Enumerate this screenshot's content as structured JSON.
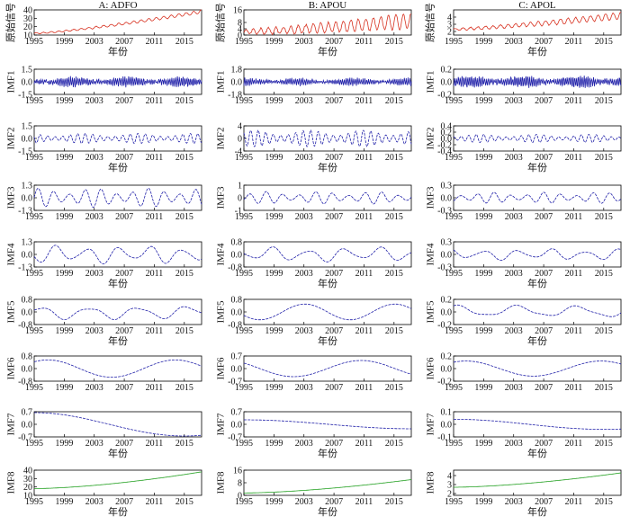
{
  "chart_data": {
    "type": "line",
    "xlabel": "年份",
    "x_range": [
      1995,
      2017.3
    ],
    "x_ticks": [
      "1995",
      "1999",
      "2003",
      "2007",
      "2011",
      "2015"
    ],
    "colors": {
      "raw": "#d7301f",
      "imf": "#1f1fa8",
      "trend": "#22a020"
    },
    "columns": [
      {
        "title": "A: ADFO",
        "panels": [
          {
            "ylabel": "原始信号",
            "kind": "raw",
            "yticks": [
              "40",
              "30",
              "20",
              "10"
            ],
            "ylim": [
              10,
              40
            ],
            "x_label_shown": true,
            "base": 12,
            "trend_end": 38,
            "noise": 1.5
          },
          {
            "ylabel": "IMF1",
            "kind": "imf",
            "yticks": [
              "1.5",
              "0.0",
              "-1.5"
            ],
            "ylim": [
              -1.5,
              1.5
            ],
            "x_label_shown": false,
            "period": 0.25,
            "amp": 0.5
          },
          {
            "ylabel": "IMF2",
            "kind": "imf",
            "yticks": [
              "1.5",
              "0.0",
              "-1.5"
            ],
            "ylim": [
              -1.5,
              1.5
            ],
            "x_label_shown": true,
            "period": 1.0,
            "amp": 0.55
          },
          {
            "ylabel": "IMF3",
            "kind": "imf",
            "yticks": [
              "1.3",
              "0.0",
              "-1.3"
            ],
            "ylim": [
              -1.3,
              1.3
            ],
            "x_label_shown": false,
            "period": 2.1,
            "amp": 0.9
          },
          {
            "ylabel": "IMF4",
            "kind": "imf",
            "yticks": [
              "1.3",
              "0.0",
              "-1.3"
            ],
            "ylim": [
              -1.3,
              1.3
            ],
            "x_label_shown": true,
            "period": 4.2,
            "amp": 0.9
          },
          {
            "ylabel": "IMF5",
            "kind": "imf",
            "yticks": [
              "0.8",
              "0.0",
              "-0.8"
            ],
            "ylim": [
              -0.8,
              0.8
            ],
            "x_label_shown": true,
            "period": 6.5,
            "amp": 0.45
          },
          {
            "ylabel": "IMF6",
            "kind": "imf",
            "yticks": [
              "0.8",
              "0.0",
              "-0.8"
            ],
            "ylim": [
              -0.8,
              0.8
            ],
            "x_label_shown": false,
            "period": 17,
            "amp": 0.55,
            "phase": 0.9
          },
          {
            "ylabel": "IMF7",
            "kind": "imf",
            "yticks": [
              "0.7",
              "0.0",
              "-0.7"
            ],
            "ylim": [
              -0.7,
              0.7
            ],
            "x_label_shown": true,
            "period": 40,
            "amp": 0.65,
            "phase": 1.57
          },
          {
            "ylabel": "IMF8",
            "kind": "trend",
            "yticks": [
              "40",
              "30",
              "20",
              "10"
            ],
            "ylim": [
              10,
              40
            ],
            "x_label_shown": true,
            "start": 18,
            "end": 38
          }
        ]
      },
      {
        "title": "B: APOU",
        "panels": [
          {
            "ylabel": "原始信号",
            "kind": "raw",
            "yticks": [
              "16",
              "8",
              "4",
              "0"
            ],
            "ylim": [
              0,
              16
            ],
            "x_label_shown": true,
            "base": 2,
            "trend_end": 9,
            "noise": 3.5
          },
          {
            "ylabel": "IMF1",
            "kind": "imf",
            "yticks": [
              "1.8",
              "0.0",
              "-1.8"
            ],
            "ylim": [
              -1.8,
              1.8
            ],
            "x_label_shown": false,
            "period": 0.25,
            "amp": 0.45
          },
          {
            "ylabel": "IMF2",
            "kind": "imf",
            "yticks": [
              "4",
              "0",
              "-4"
            ],
            "ylim": [
              -4,
              4
            ],
            "x_label_shown": true,
            "period": 1.0,
            "amp": 2.4
          },
          {
            "ylabel": "IMF3",
            "kind": "imf",
            "yticks": [
              "1",
              "0",
              "-1"
            ],
            "ylim": [
              -1,
              1
            ],
            "x_label_shown": false,
            "period": 2.2,
            "amp": 0.45
          },
          {
            "ylabel": "IMF4",
            "kind": "imf",
            "yticks": [
              "0.8",
              "0.0",
              "-0.8"
            ],
            "ylim": [
              -0.8,
              0.8
            ],
            "x_label_shown": true,
            "period": 4.8,
            "amp": 0.45
          },
          {
            "ylabel": "IMF5",
            "kind": "imf",
            "yticks": [
              "0.8",
              "0.0",
              "-0.8"
            ],
            "ylim": [
              -0.8,
              0.8
            ],
            "x_label_shown": true,
            "period": 12,
            "amp": 0.5,
            "phase": 3.6
          },
          {
            "ylabel": "IMF6",
            "kind": "imf",
            "yticks": [
              "0.7",
              "0.0",
              "-0.7"
            ],
            "ylim": [
              -0.7,
              0.7
            ],
            "x_label_shown": false,
            "period": 18,
            "amp": 0.45,
            "phase": 2.4
          },
          {
            "ylabel": "IMF7",
            "kind": "imf",
            "yticks": [
              "0.7",
              "0.0",
              "-0.7"
            ],
            "ylim": [
              -0.7,
              0.7
            ],
            "x_label_shown": true,
            "period": 45,
            "amp": 0.25,
            "phase": 1.57
          },
          {
            "ylabel": "IMF8",
            "kind": "trend",
            "yticks": [
              "16",
              "8",
              "0"
            ],
            "ylim": [
              0,
              16
            ],
            "x_label_shown": true,
            "start": 1.5,
            "end": 10
          }
        ]
      },
      {
        "title": "C: APOL",
        "panels": [
          {
            "ylabel": "原始信号",
            "kind": "raw",
            "yticks": [
              "4",
              "3",
              "2"
            ],
            "ylim": [
              1.5,
              5
            ],
            "x_label_shown": true,
            "base": 2.3,
            "trend_end": 4.2,
            "noise": 0.35
          },
          {
            "ylabel": "IMF1",
            "kind": "imf",
            "yticks": [
              "0.2",
              "0.0",
              "-0.2"
            ],
            "ylim": [
              -0.2,
              0.2
            ],
            "x_label_shown": false,
            "period": 0.25,
            "amp": 0.08
          },
          {
            "ylabel": "IMF2",
            "kind": "imf",
            "yticks": [
              "0.4",
              "0.2",
              "0.0",
              "-0.2",
              "-0.4"
            ],
            "ylim": [
              -0.4,
              0.4
            ],
            "x_label_shown": true,
            "period": 1.0,
            "amp": 0.12
          },
          {
            "ylabel": "IMF3",
            "kind": "imf",
            "yticks": [
              "0.3",
              "0.0",
              "-0.3"
            ],
            "ylim": [
              -0.3,
              0.3
            ],
            "x_label_shown": false,
            "period": 2.2,
            "amp": 0.12
          },
          {
            "ylabel": "IMF4",
            "kind": "imf",
            "yticks": [
              "0.3",
              "0.0",
              "-0.3"
            ],
            "ylim": [
              -0.3,
              0.3
            ],
            "x_label_shown": true,
            "period": 4.5,
            "amp": 0.13
          },
          {
            "ylabel": "IMF5",
            "kind": "imf",
            "yticks": [
              "0.2",
              "0.0",
              "-0.2"
            ],
            "ylim": [
              -0.2,
              0.2
            ],
            "x_label_shown": true,
            "period": 8,
            "amp": 0.1,
            "phase": 1.2
          },
          {
            "ylabel": "IMF6",
            "kind": "imf",
            "yticks": [
              "0.2",
              "0.0",
              "-0.2"
            ],
            "ylim": [
              -0.2,
              0.2
            ],
            "x_label_shown": false,
            "period": 18,
            "amp": 0.12,
            "phase": 1.0
          },
          {
            "ylabel": "IMF7",
            "kind": "imf",
            "yticks": [
              "0.1",
              "0.0",
              "-0.1"
            ],
            "ylim": [
              -0.1,
              0.1
            ],
            "x_label_shown": true,
            "period": 40,
            "amp": 0.04,
            "phase": 1.57
          },
          {
            "ylabel": "IMF8",
            "kind": "trend",
            "yticks": [
              "4",
              "3",
              "2"
            ],
            "ylim": [
              1.8,
              4.6
            ],
            "x_label_shown": true,
            "start": 2.7,
            "end": 4.3
          }
        ]
      }
    ]
  }
}
